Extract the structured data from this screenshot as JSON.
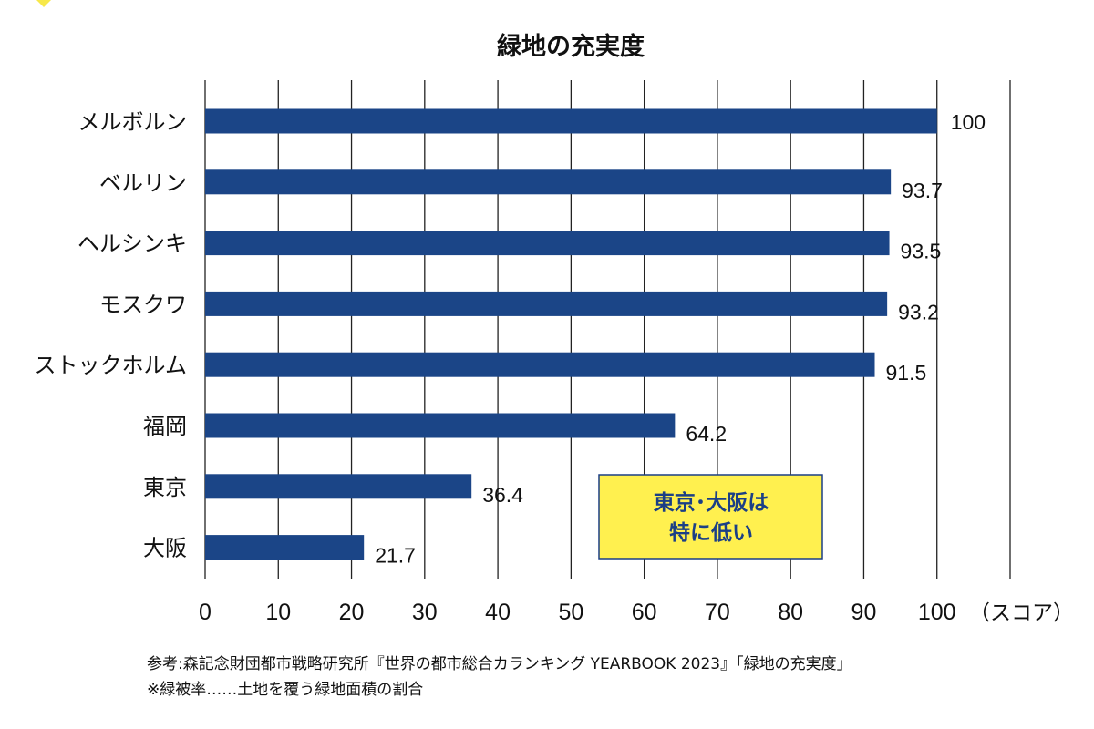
{
  "chart_data": {
    "type": "bar",
    "orientation": "horizontal",
    "title": "緑地の充実度",
    "categories": [
      "メルボルン",
      "ベルリン",
      "ヘルシンキ",
      "モスクワ",
      "ストックホルム",
      "福岡",
      "東京",
      "大阪"
    ],
    "values": [
      100,
      93.7,
      93.5,
      93.2,
      91.5,
      64.2,
      36.4,
      21.7
    ],
    "value_labels": [
      "100",
      "93.7",
      "93.5",
      "93.2",
      "91.5",
      "64.2",
      "36.4",
      "21.7"
    ],
    "xlim": [
      0,
      110
    ],
    "xticks": [
      0,
      10,
      20,
      30,
      40,
      50,
      60,
      70,
      80,
      90,
      100
    ],
    "xtick_labels": [
      "0",
      "10",
      "20",
      "30",
      "40",
      "50",
      "60",
      "70",
      "80",
      "90",
      "100"
    ],
    "xlabel": "（スコア）",
    "ylabel": "",
    "grid": true,
    "bar_color": "#1b4587",
    "annotation": {
      "lines": [
        "東京･大阪は",
        "特に低い"
      ],
      "background": "#fff04f",
      "text_color": "#1b3f86"
    }
  },
  "footer": {
    "source": "参考:森記念財団都市戦略研究所『世界の都市総合カランキング YEARBOOK 2023』「緑地の充実度」",
    "note": "※緑被率……土地を覆う緑地面積の割合"
  }
}
